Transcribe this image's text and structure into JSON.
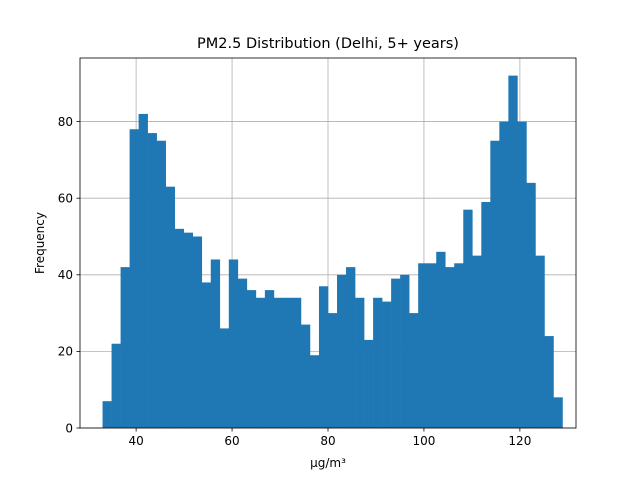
{
  "chart_data": {
    "type": "bar",
    "title": "PM2.5 Distribution (Delhi, 5+ years)",
    "xlabel": "µg/m³",
    "ylabel": "Frequency",
    "xlim": [
      28.3,
      131.7
    ],
    "ylim": [
      0,
      96.6
    ],
    "grid": true,
    "bar_color": "#1f77b4",
    "bin_start": 33.0,
    "bin_width": 1.88,
    "values": [
      7,
      22,
      42,
      78,
      82,
      77,
      75,
      63,
      52,
      51,
      50,
      38,
      44,
      26,
      44,
      39,
      36,
      34,
      36,
      34,
      34,
      34,
      27,
      19,
      37,
      30,
      40,
      42,
      34,
      23,
      34,
      33,
      39,
      40,
      30,
      43,
      43,
      46,
      42,
      43,
      57,
      45,
      59,
      75,
      80,
      92,
      80,
      64,
      45,
      24,
      8
    ],
    "xticks": [
      40,
      60,
      80,
      100,
      120
    ],
    "yticks": [
      0,
      20,
      40,
      60,
      80
    ]
  }
}
